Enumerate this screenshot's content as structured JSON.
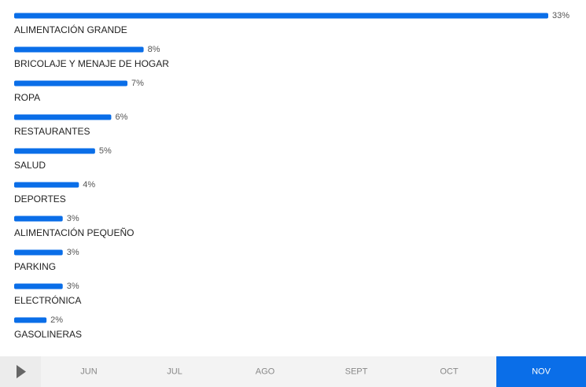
{
  "chart_data": {
    "type": "bar",
    "orientation": "horizontal",
    "categories": [
      "ALIMENTACIÓN GRANDE",
      "BRICOLAJE Y MENAJE DE HOGAR",
      "ROPA",
      "RESTAURANTES",
      "SALUD",
      "DEPORTES",
      "ALIMENTACIÓN PEQUEÑO",
      "PARKING",
      "ELECTRÓNICA",
      "GASOLINERAS"
    ],
    "values": [
      33,
      8,
      7,
      6,
      5,
      4,
      3,
      3,
      3,
      2
    ],
    "value_labels": [
      "33%",
      "8%",
      "7%",
      "6%",
      "5%",
      "4%",
      "3%",
      "3%",
      "3%",
      "2%"
    ],
    "color": "#0a6ee8",
    "xlim": [
      0,
      33
    ]
  },
  "timeline": {
    "months": [
      "JUN",
      "JUL",
      "AGO",
      "SEPT",
      "OCT",
      "NOV"
    ],
    "selected": 5
  }
}
